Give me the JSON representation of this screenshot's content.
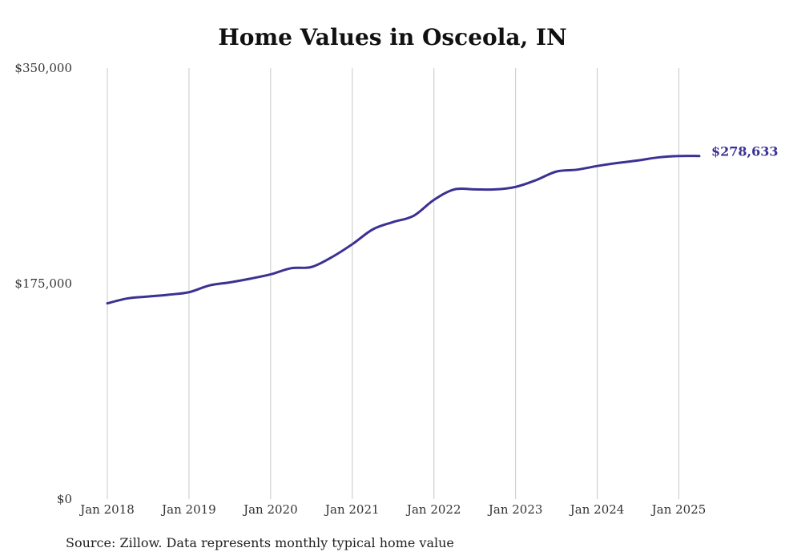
{
  "chart_data": {
    "type": "line",
    "title": "Home Values in Osceola, IN",
    "xlabel": "",
    "ylabel": "",
    "x_ticks": [
      "Jan 2018",
      "Jan 2019",
      "Jan 2020",
      "Jan 2021",
      "Jan 2022",
      "Jan 2023",
      "Jan 2024",
      "Jan 2025"
    ],
    "y_ticks": [
      "$0",
      "$175,000",
      "$350,000"
    ],
    "ylim": [
      0,
      350000
    ],
    "xlim": [
      "2018-01",
      "2025-04"
    ],
    "grid": "vertical",
    "series": [
      {
        "color": "#3b3193",
        "end_label": "$278,633",
        "x": [
          "2018-01",
          "2018-04",
          "2018-07",
          "2018-10",
          "2019-01",
          "2019-04",
          "2019-07",
          "2019-10",
          "2020-01",
          "2020-04",
          "2020-07",
          "2020-10",
          "2021-01",
          "2021-04",
          "2021-07",
          "2021-10",
          "2022-01",
          "2022-04",
          "2022-07",
          "2022-10",
          "2023-01",
          "2023-04",
          "2023-07",
          "2023-10",
          "2024-01",
          "2024-04",
          "2024-07",
          "2024-10",
          "2025-01",
          "2025-04"
        ],
        "values": [
          159000,
          163000,
          164500,
          166000,
          168000,
          173500,
          176000,
          179000,
          182500,
          187500,
          188500,
          196500,
          207000,
          219000,
          225000,
          230000,
          243000,
          251500,
          251500,
          251500,
          253500,
          259000,
          266000,
          267500,
          270500,
          273000,
          275000,
          277500,
          278633,
          278633
        ]
      }
    ]
  },
  "source_note": "Source: Zillow. Data represents monthly typical home value"
}
